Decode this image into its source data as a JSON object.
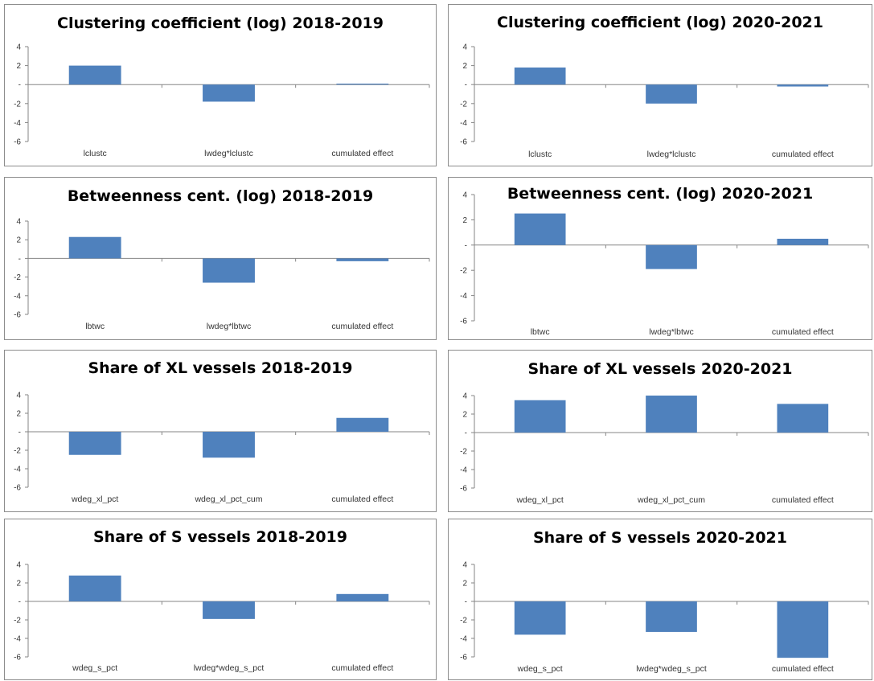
{
  "chart_data": [
    {
      "type": "bar",
      "title": "Clustering coefficient (log) 2018-2019",
      "categories": [
        "lclustc",
        "lwdeg*lclustc",
        "cumulated effect"
      ],
      "values": [
        2.0,
        -1.8,
        0.1
      ],
      "yticks": [
        "4",
        "2",
        "-",
        "-2",
        "-4",
        "-6"
      ],
      "ylim": [
        -6,
        4
      ],
      "grid": false,
      "legend": "none"
    },
    {
      "type": "bar",
      "title": "Clustering coefficient (log) 2020-2021",
      "categories": [
        "lclustc",
        "lwdeg*lclustc",
        "cumulated effect"
      ],
      "values": [
        1.8,
        -2.0,
        -0.2
      ],
      "yticks": [
        "4",
        "2",
        "-",
        "-2",
        "-4",
        "-6"
      ],
      "ylim": [
        -6,
        4
      ],
      "grid": false,
      "legend": "none"
    },
    {
      "type": "bar",
      "title": "Betweenness cent. (log) 2018-2019",
      "categories": [
        "lbtwc",
        "lwdeg*lbtwc",
        "cumulated effect"
      ],
      "values": [
        2.3,
        -2.6,
        -0.3
      ],
      "yticks": [
        "4",
        "2",
        "-",
        "-2",
        "-4",
        "-6"
      ],
      "ylim": [
        -6,
        4
      ],
      "grid": false,
      "legend": "none"
    },
    {
      "type": "bar",
      "title": "Betweenness cent. (log) 2020-2021",
      "categories": [
        "lbtwc",
        "lwdeg*lbtwc",
        "cumulated effect"
      ],
      "values": [
        2.5,
        -1.9,
        0.5
      ],
      "yticks": [
        "4",
        "2",
        "-",
        "-2",
        "-4",
        "-6"
      ],
      "ylim": [
        -6,
        4
      ],
      "grid": false,
      "legend": "none"
    },
    {
      "type": "bar",
      "title": "Share of XL vessels 2018-2019",
      "categories": [
        "wdeg_xl_pct",
        "wdeg_xl_pct_cum",
        "cumulated effect"
      ],
      "values": [
        -2.5,
        -2.8,
        1.5
      ],
      "yticks": [
        "4",
        "2",
        "-",
        "-2",
        "-4",
        "-6"
      ],
      "ylim": [
        -6,
        4
      ],
      "grid": false,
      "legend": "none"
    },
    {
      "type": "bar",
      "title": "Share of XL vessels 2020-2021",
      "categories": [
        "wdeg_xl_pct",
        "wdeg_xl_pct_cum",
        "cumulated effect"
      ],
      "values": [
        3.5,
        4.0,
        3.1
      ],
      "yticks": [
        "4",
        "2",
        "-",
        "-2",
        "-4",
        "-6"
      ],
      "ylim": [
        -6,
        4
      ],
      "grid": false,
      "legend": "none"
    },
    {
      "type": "bar",
      "title": "Share of S vessels 2018-2019",
      "categories": [
        "wdeg_s_pct",
        "lwdeg*wdeg_s_pct",
        "cumulated effect"
      ],
      "values": [
        2.8,
        -1.9,
        0.8
      ],
      "yticks": [
        "4",
        "2",
        "-",
        "-2",
        "-4",
        "-6"
      ],
      "ylim": [
        -6,
        4
      ],
      "grid": false,
      "legend": "none"
    },
    {
      "type": "bar",
      "title": "Share of S vessels 2020-2021",
      "categories": [
        "wdeg_s_pct",
        "lwdeg*wdeg_s_pct",
        "cumulated effect"
      ],
      "values": [
        -3.6,
        -3.3,
        -6.1
      ],
      "yticks": [
        "4",
        "2",
        "-",
        "-2",
        "-4",
        "-6"
      ],
      "ylim": [
        -6,
        4
      ],
      "grid": false,
      "legend": "none"
    }
  ],
  "colors": {
    "bar": "#4f81bd",
    "axis": "#868686",
    "border": "#8c8c8c"
  }
}
